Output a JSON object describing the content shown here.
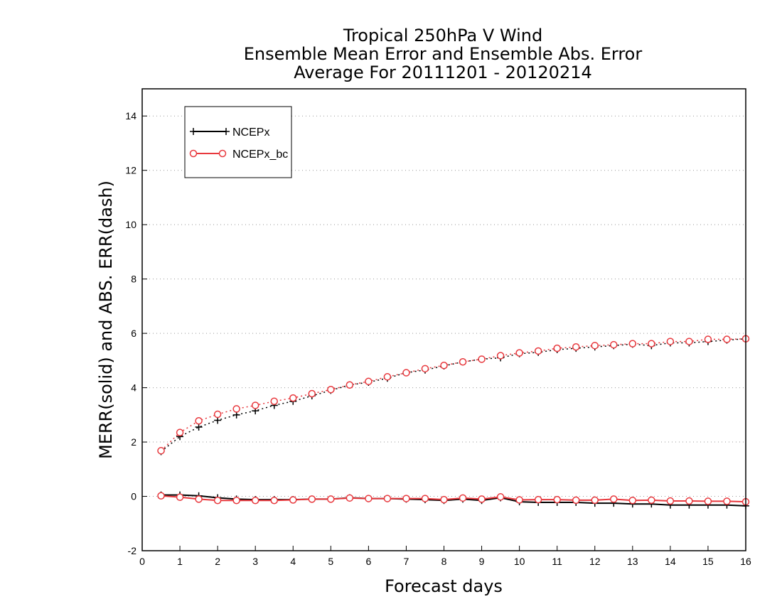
{
  "chart_data": {
    "type": "line",
    "title_lines": [
      "Tropical 250hPa V Wind",
      "Ensemble Mean Error and Ensemble Abs. Error",
      "Average For 20111201 - 20120214"
    ],
    "xlabel": "Forecast days",
    "ylabel": "MERR(solid) and ABS. ERR(dash)",
    "xlim": [
      0,
      16
    ],
    "ylim": [
      -2,
      15
    ],
    "xticks": [
      "0",
      "1",
      "2",
      "3",
      "4",
      "5",
      "6",
      "7",
      "8",
      "9",
      "10",
      "11",
      "12",
      "13",
      "14",
      "15",
      "16"
    ],
    "yticks": [
      "-2",
      "0",
      "2",
      "4",
      "6",
      "8",
      "10",
      "12",
      "14"
    ],
    "grid": "horizontal dotted",
    "legend_position": "top-left",
    "x": [
      0.5,
      1,
      1.5,
      2,
      2.5,
      3,
      3.5,
      4,
      4.5,
      5,
      5.5,
      6,
      6.5,
      7,
      7.5,
      8,
      8.5,
      9,
      9.5,
      10,
      10.5,
      11,
      11.5,
      12,
      12.5,
      13,
      13.5,
      14,
      14.5,
      15,
      15.5,
      16
    ],
    "series": [
      {
        "name": "NCEPx",
        "color": "#000000",
        "marker": "plus",
        "abs_error": [
          1.65,
          2.2,
          2.55,
          2.8,
          3.0,
          3.15,
          3.35,
          3.5,
          3.7,
          3.9,
          4.1,
          4.2,
          4.35,
          4.55,
          4.65,
          4.8,
          4.95,
          5.05,
          5.1,
          5.25,
          5.3,
          5.4,
          5.45,
          5.5,
          5.55,
          5.6,
          5.55,
          5.65,
          5.65,
          5.7,
          5.75,
          5.8
        ],
        "mean_error": [
          0.05,
          0.05,
          0.02,
          -0.05,
          -0.1,
          -0.12,
          -0.12,
          -0.12,
          -0.1,
          -0.1,
          -0.05,
          -0.08,
          -0.08,
          -0.1,
          -0.12,
          -0.15,
          -0.1,
          -0.15,
          -0.05,
          -0.2,
          -0.22,
          -0.22,
          -0.22,
          -0.25,
          -0.25,
          -0.28,
          -0.28,
          -0.32,
          -0.32,
          -0.32,
          -0.32,
          -0.35
        ]
      },
      {
        "name": "NCEPx_bc",
        "color": "#e8383d",
        "marker": "circle",
        "abs_error": [
          1.68,
          2.35,
          2.78,
          3.02,
          3.22,
          3.35,
          3.5,
          3.62,
          3.78,
          3.93,
          4.1,
          4.23,
          4.4,
          4.55,
          4.7,
          4.82,
          4.95,
          5.05,
          5.18,
          5.28,
          5.35,
          5.45,
          5.5,
          5.55,
          5.58,
          5.62,
          5.62,
          5.7,
          5.7,
          5.78,
          5.78,
          5.8
        ],
        "mean_error": [
          0.02,
          -0.03,
          -0.1,
          -0.15,
          -0.15,
          -0.15,
          -0.15,
          -0.13,
          -0.1,
          -0.1,
          -0.06,
          -0.08,
          -0.08,
          -0.08,
          -0.08,
          -0.12,
          -0.06,
          -0.1,
          -0.02,
          -0.13,
          -0.12,
          -0.12,
          -0.14,
          -0.14,
          -0.1,
          -0.15,
          -0.14,
          -0.17,
          -0.17,
          -0.18,
          -0.18,
          -0.2
        ]
      }
    ]
  }
}
